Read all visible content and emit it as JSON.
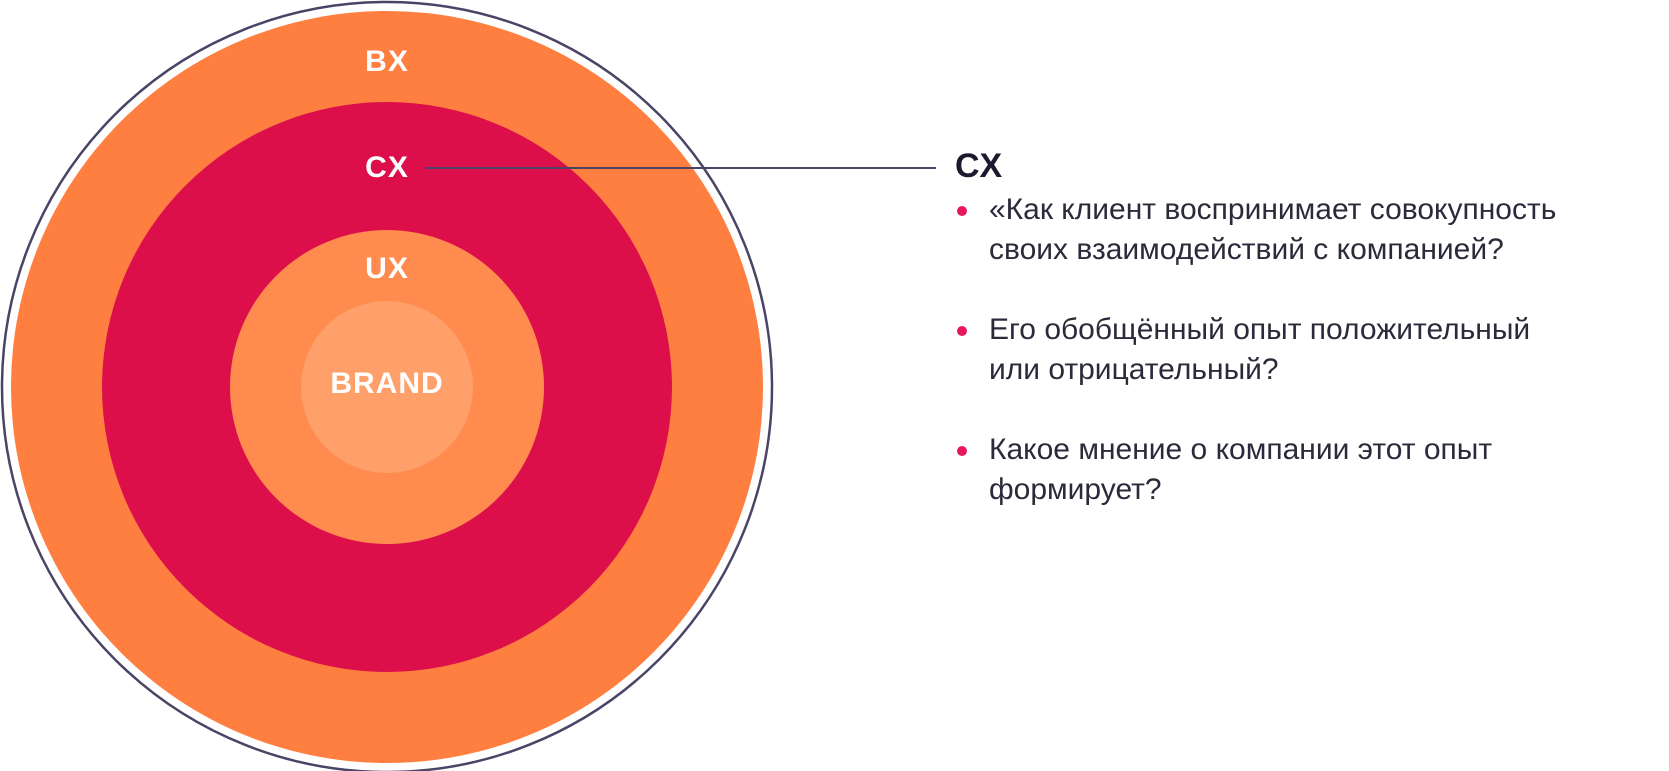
{
  "rings": [
    {
      "label": "BX"
    },
    {
      "label": "CX"
    },
    {
      "label": "UX"
    },
    {
      "label": "BRAND"
    }
  ],
  "callout": {
    "title": "CX",
    "bullets": [
      [
        "«Как клиент воспринимает совокупность",
        "своих взаимодействий с компанией?"
      ],
      [
        "Его обобщённый опыт положительный",
        "или отрицательный?"
      ],
      [
        "Какое мнение о компании этот опыт",
        "формирует?"
      ]
    ]
  }
}
